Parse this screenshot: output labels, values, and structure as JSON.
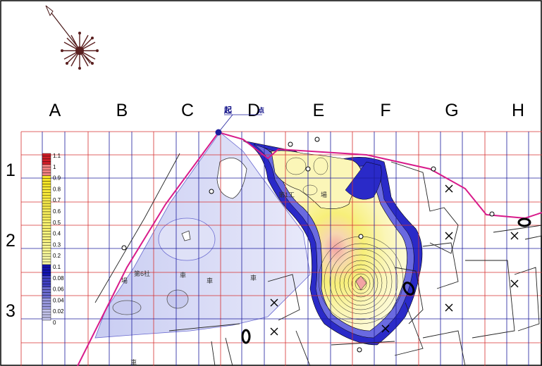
{
  "grid": {
    "columns": [
      "A",
      "B",
      "C",
      "D",
      "E",
      "F",
      "G",
      "H"
    ],
    "rows": [
      "1",
      "2",
      "3"
    ]
  },
  "start_marker": {
    "label_left": "起",
    "label_right": "点"
  },
  "legend": {
    "levels": [
      "1.1",
      "1",
      "0.9",
      "0.8",
      "0.7",
      "0.6",
      "0.5",
      "0.4",
      "0.3",
      "0.2",
      "0.1",
      "0.08",
      "0.06",
      "0.04",
      "0.02",
      "0"
    ]
  },
  "map_labels": [
    {
      "text": "第1工"
    },
    {
      "text": "場"
    },
    {
      "text": "場"
    },
    {
      "text": "第6社"
    },
    {
      "text": "車"
    },
    {
      "text": "車"
    },
    {
      "text": "車"
    },
    {
      "text": "車"
    }
  ],
  "colors": {
    "grid_red": "#d63030",
    "grid_blue": "#1c1c9c",
    "boundary": "#d81b8a",
    "contour_high": "#f0a0a0",
    "contour_low": "#1c1cc0"
  }
}
